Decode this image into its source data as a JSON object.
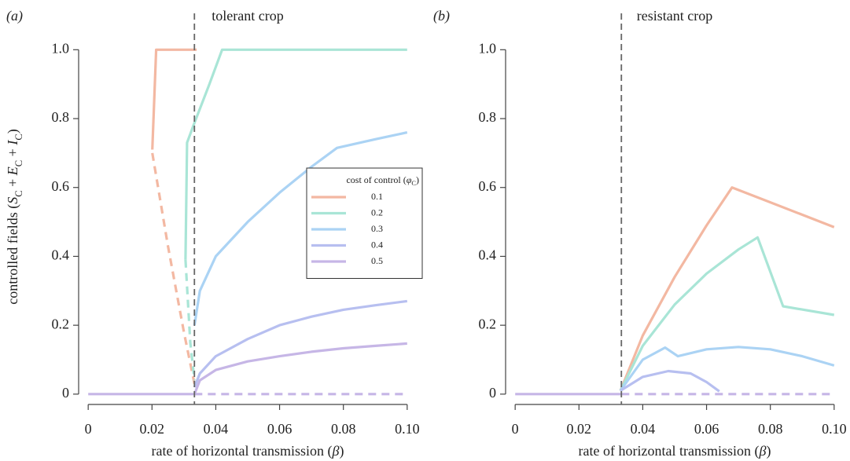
{
  "chart_data": [
    {
      "type": "line",
      "panel": "(a)",
      "title": "tolerant crop",
      "x_label": [
        {
          "text": "rate of horizontal transmission ("
        },
        {
          "text": "β",
          "italic": true
        },
        {
          "text": ")"
        }
      ],
      "y_label": [
        {
          "text": "controlled fields ("
        },
        {
          "text": "S",
          "italic": true
        },
        {
          "text": "C",
          "sub": true
        },
        {
          "text": " + "
        },
        {
          "text": "E",
          "italic": true
        },
        {
          "text": "C",
          "sub": true
        },
        {
          "text": " + "
        },
        {
          "text": "I",
          "italic": true
        },
        {
          "text": "C",
          "sub": true
        },
        {
          "text": ")"
        }
      ],
      "xlim": [
        -0.003,
        0.103
      ],
      "ylim": [
        -0.03,
        1.06
      ],
      "xticks": [
        0,
        0.02,
        0.04,
        0.06,
        0.08,
        {
          "value": 0.1,
          "label": "0.10"
        }
      ],
      "yticks": [
        0,
        0.2,
        0.4,
        0.6,
        0.8,
        {
          "value": 1,
          "label": "1.0"
        }
      ],
      "vline": 0.0333,
      "legend": {
        "position": "center-right",
        "title": [
          {
            "text": "cost of control ("
          },
          {
            "text": "φ",
            "italic": true
          },
          {
            "text": "C",
            "sub": true
          },
          {
            "text": ")"
          }
        ]
      },
      "series": [
        {
          "name": "0.1",
          "color": "#f3b8a2",
          "segments": [
            {
              "style": "solid",
              "x": [
                0.0201,
                0.0213,
                0.034
              ],
              "values": [
                0.71,
                1.0,
                1.0
              ]
            },
            {
              "style": "dashed",
              "x": [
                0.0201,
                0.025,
                0.03,
                0.0333
              ],
              "values": [
                0.7,
                0.43,
                0.18,
                0.03
              ]
            }
          ]
        },
        {
          "name": "0.2",
          "color": "#a9e5d6",
          "segments": [
            {
              "style": "solid",
              "x": [
                0.0305,
                0.031,
                0.033,
                0.038,
                0.042,
                0.1
              ],
              "values": [
                0.39,
                0.73,
                0.78,
                0.9,
                1.0,
                1.0
              ]
            },
            {
              "style": "dashed",
              "x": [
                0.0305,
                0.032,
                0.0333
              ],
              "values": [
                0.39,
                0.15,
                0.04
              ]
            }
          ]
        },
        {
          "name": "0.3",
          "color": "#abd3f4",
          "segments": [
            {
              "style": "solid",
              "x": [
                0.0333,
                0.035,
                0.04,
                0.05,
                0.06,
                0.07,
                0.078,
                0.09,
                0.1
              ],
              "values": [
                0.2,
                0.3,
                0.4,
                0.5,
                0.585,
                0.66,
                0.715,
                0.74,
                0.76
              ]
            }
          ]
        },
        {
          "name": "0.4",
          "color": "#b7bff0",
          "segments": [
            {
              "style": "solid",
              "x": [
                0.0333,
                0.035,
                0.04,
                0.05,
                0.06,
                0.07,
                0.08,
                0.09,
                0.1
              ],
              "values": [
                0.02,
                0.06,
                0.11,
                0.16,
                0.2,
                0.225,
                0.245,
                0.258,
                0.27
              ]
            }
          ]
        },
        {
          "name": "0.5",
          "color": "#c6b6e6",
          "segments": [
            {
              "style": "solid",
              "x": [
                0,
                0.0333,
                0.035,
                0.04,
                0.05,
                0.06,
                0.07,
                0.08,
                0.09,
                0.1
              ],
              "values": [
                0,
                0,
                0.04,
                0.07,
                0.095,
                0.11,
                0.123,
                0.133,
                0.14,
                0.147
              ]
            },
            {
              "style": "dashed",
              "x": [
                0.0333,
                0.1
              ],
              "values": [
                0,
                0
              ]
            }
          ]
        }
      ]
    },
    {
      "type": "line",
      "panel": "(b)",
      "title": "resistant crop",
      "x_label": [
        {
          "text": "rate of horizontal transmission ("
        },
        {
          "text": "β",
          "italic": true
        },
        {
          "text": ")"
        }
      ],
      "xlim": [
        -0.003,
        0.103
      ],
      "ylim": [
        -0.03,
        1.06
      ],
      "xticks": [
        0,
        0.02,
        0.04,
        0.06,
        0.08,
        {
          "value": 0.1,
          "label": "0.10"
        }
      ],
      "yticks": [
        0,
        0.2,
        0.4,
        0.6,
        0.8,
        {
          "value": 1,
          "label": "1.0"
        }
      ],
      "vline": 0.0333,
      "series": [
        {
          "color": "#f3b8a2",
          "segments": [
            {
              "style": "solid",
              "x": [
                0.033,
                0.04,
                0.05,
                0.06,
                0.068,
                0.1
              ],
              "values": [
                0.01,
                0.17,
                0.34,
                0.49,
                0.6,
                0.485
              ]
            }
          ]
        },
        {
          "color": "#a9e5d6",
          "segments": [
            {
              "style": "solid",
              "x": [
                0.033,
                0.04,
                0.05,
                0.06,
                0.07,
                0.076,
                0.084,
                0.1
              ],
              "values": [
                0.01,
                0.14,
                0.26,
                0.35,
                0.42,
                0.455,
                0.255,
                0.23
              ]
            }
          ]
        },
        {
          "color": "#abd3f4",
          "segments": [
            {
              "style": "solid",
              "x": [
                0.033,
                0.04,
                0.047,
                0.051,
                0.06,
                0.07,
                0.08,
                0.09,
                0.1
              ],
              "values": [
                0.01,
                0.1,
                0.135,
                0.11,
                0.13,
                0.137,
                0.13,
                0.11,
                0.083
              ]
            }
          ]
        },
        {
          "color": "#b7bff0",
          "segments": [
            {
              "style": "solid",
              "x": [
                0.033,
                0.04,
                0.048,
                0.055,
                0.06,
                0.064
              ],
              "values": [
                0.01,
                0.05,
                0.067,
                0.06,
                0.035,
                0.008
              ]
            }
          ]
        },
        {
          "color": "#c6b6e6",
          "segments": [
            {
              "style": "solid",
              "x": [
                0,
                0.0333
              ],
              "values": [
                0,
                0
              ]
            },
            {
              "style": "dashed",
              "x": [
                0.0333,
                0.1
              ],
              "values": [
                0,
                0
              ]
            }
          ]
        }
      ]
    }
  ]
}
